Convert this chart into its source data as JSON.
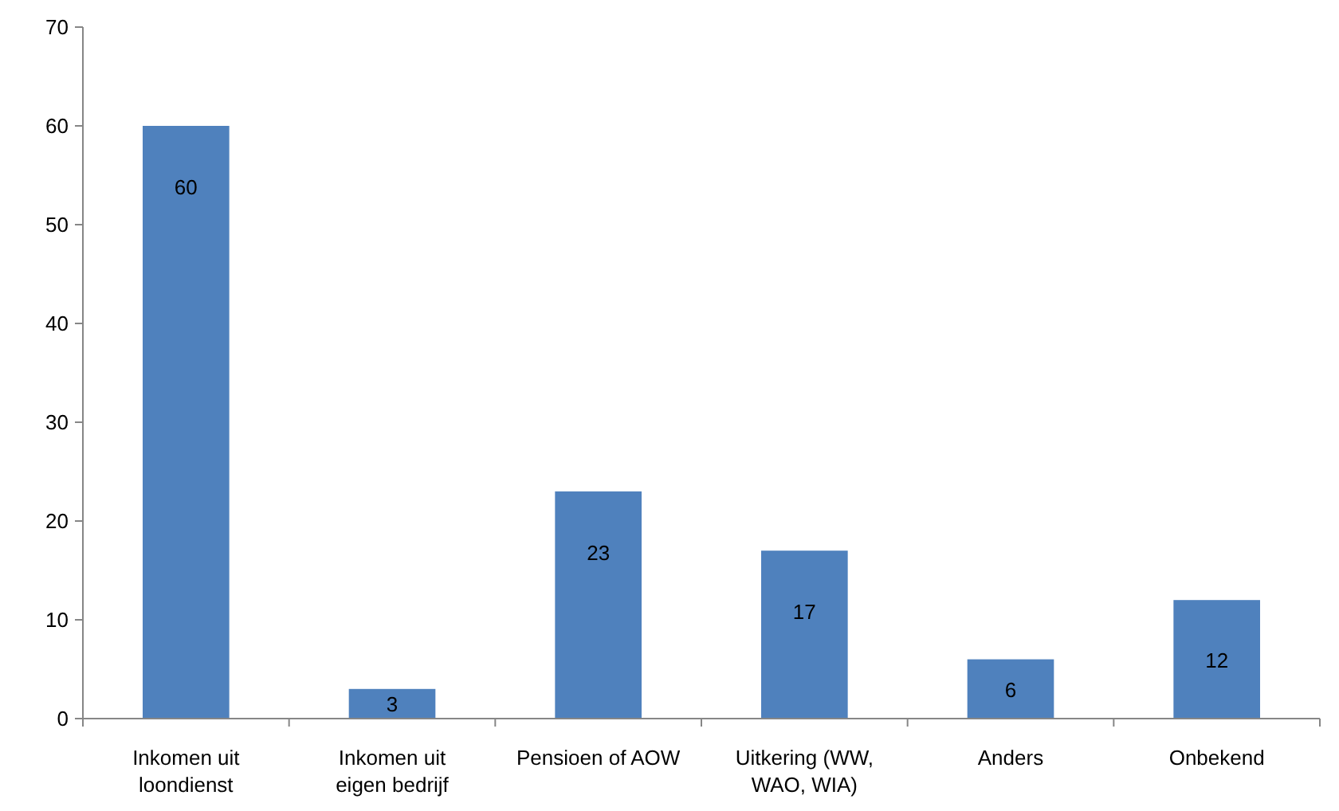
{
  "chart_data": {
    "type": "bar",
    "categories": [
      "Inkomen uit loondienst",
      "Inkomen uit eigen bedrijf",
      "Pensioen of AOW",
      "Uitkering (WW, WAO, WIA)",
      "Anders",
      "Onbekend"
    ],
    "values": [
      60,
      3,
      23,
      17,
      6,
      12
    ],
    "color": "#4f81bd",
    "ylim": [
      0,
      70
    ],
    "yticks": [
      0,
      10,
      20,
      30,
      40,
      50,
      60,
      70
    ],
    "data_labels": true,
    "grid": false
  }
}
